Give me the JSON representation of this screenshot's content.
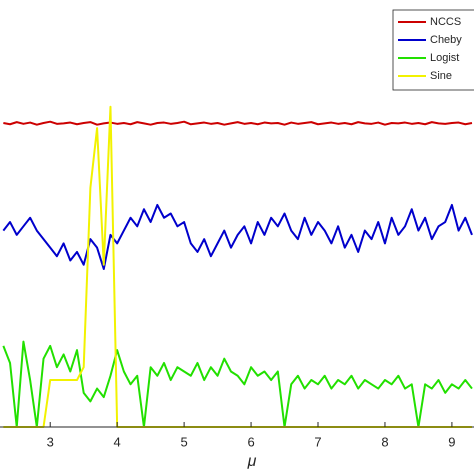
{
  "chart_data": {
    "type": "line",
    "x_label": "μ",
    "x": [
      2.3,
      2.4,
      2.5,
      2.6,
      2.7,
      2.8,
      2.9,
      3.0,
      3.1,
      3.2,
      3.3,
      3.4,
      3.5,
      3.6,
      3.7,
      3.8,
      3.9,
      4.0,
      4.1,
      4.2,
      4.3,
      4.4,
      4.5,
      4.6,
      4.7,
      4.8,
      4.9,
      5.0,
      5.1,
      5.2,
      5.3,
      5.4,
      5.5,
      5.6,
      5.7,
      5.8,
      5.9,
      6.0,
      6.1,
      6.2,
      6.3,
      6.4,
      6.5,
      6.6,
      6.7,
      6.8,
      6.9,
      7.0,
      7.1,
      7.2,
      7.3,
      7.4,
      7.5,
      7.6,
      7.7,
      7.8,
      7.9,
      8.0,
      8.1,
      8.2,
      8.3,
      8.4,
      8.5,
      8.6,
      8.7,
      8.8,
      8.9,
      9.0,
      9.1,
      9.2,
      9.3
    ],
    "series": [
      {
        "name": "NCCS",
        "color": "#cc0000",
        "values": [
          7.12,
          7.09,
          7.14,
          7.1,
          7.13,
          7.08,
          7.12,
          7.15,
          7.1,
          7.11,
          7.13,
          7.09,
          7.12,
          7.14,
          7.08,
          7.11,
          7.13,
          7.1,
          7.12,
          7.09,
          7.14,
          7.11,
          7.08,
          7.12,
          7.13,
          7.1,
          7.12,
          7.15,
          7.09,
          7.11,
          7.13,
          7.1,
          7.12,
          7.08,
          7.11,
          7.14,
          7.1,
          7.12,
          7.09,
          7.13,
          7.11,
          7.12,
          7.08,
          7.13,
          7.1,
          7.12,
          7.14,
          7.09,
          7.11,
          7.13,
          7.1,
          7.12,
          7.09,
          7.14,
          7.11,
          7.1,
          7.13,
          7.08,
          7.12,
          7.11,
          7.13,
          7.1,
          7.12,
          7.09,
          7.14,
          7.11,
          7.1,
          7.12,
          7.13,
          7.09,
          7.12
        ]
      },
      {
        "name": "Cheby",
        "color": "#0000cc",
        "values": [
          4.6,
          4.8,
          4.5,
          4.7,
          4.9,
          4.6,
          4.4,
          4.2,
          4.0,
          4.3,
          3.9,
          4.1,
          3.8,
          4.4,
          4.2,
          3.7,
          4.5,
          4.3,
          4.6,
          4.9,
          4.7,
          5.1,
          4.8,
          5.2,
          4.9,
          5.0,
          4.7,
          4.8,
          4.3,
          4.1,
          4.4,
          4.0,
          4.3,
          4.6,
          4.2,
          4.5,
          4.7,
          4.3,
          4.8,
          4.5,
          4.9,
          4.7,
          5.0,
          4.6,
          4.4,
          4.9,
          4.5,
          4.8,
          4.6,
          4.3,
          4.7,
          4.2,
          4.5,
          4.1,
          4.6,
          4.4,
          4.8,
          4.3,
          4.9,
          4.5,
          4.7,
          5.1,
          4.6,
          4.9,
          4.4,
          4.7,
          4.8,
          5.2,
          4.6,
          4.9,
          4.5
        ]
      },
      {
        "name": "Logist",
        "color": "#22e000",
        "values": [
          1.9,
          1.5,
          0,
          2.0,
          1.1,
          0,
          1.6,
          1.9,
          1.4,
          1.7,
          1.3,
          1.8,
          0.8,
          0.6,
          0.9,
          0.7,
          1.2,
          1.8,
          1.3,
          1.0,
          1.2,
          0,
          1.4,
          1.2,
          1.5,
          1.1,
          1.4,
          1.3,
          1.2,
          1.5,
          1.1,
          1.4,
          1.2,
          1.6,
          1.3,
          1.2,
          1.0,
          1.4,
          1.2,
          1.3,
          1.1,
          1.3,
          0,
          1.0,
          1.2,
          0.9,
          1.1,
          1.0,
          1.2,
          0.9,
          1.1,
          1.0,
          1.2,
          0.9,
          1.1,
          1.0,
          0.9,
          1.1,
          1.0,
          1.2,
          0.9,
          1.0,
          0,
          1.0,
          0.9,
          1.1,
          0.8,
          1.0,
          0.9,
          1.1,
          0.9
        ]
      },
      {
        "name": "Sine",
        "color": "#f2f200",
        "values": [
          0,
          0,
          0,
          0,
          0,
          0,
          0,
          1.1,
          1.1,
          1.1,
          1.1,
          1.1,
          1.4,
          5.6,
          7.0,
          3.8,
          7.5,
          0,
          0,
          0,
          0,
          0,
          0,
          0,
          0,
          0,
          0,
          0,
          0,
          0,
          0,
          0,
          0,
          0,
          0,
          0,
          0,
          0,
          0,
          0,
          0,
          0,
          0,
          0,
          0,
          0,
          0,
          0,
          0,
          0,
          0,
          0,
          0,
          0,
          0,
          0,
          0,
          0,
          0,
          0,
          0,
          0,
          0,
          0,
          0,
          0,
          0,
          0,
          0,
          0,
          0
        ]
      }
    ],
    "xlim": [
      2.25,
      9.33
    ],
    "ylim": [
      0,
      10
    ],
    "xticks": [
      3,
      4,
      5,
      6,
      7,
      8,
      9
    ]
  }
}
